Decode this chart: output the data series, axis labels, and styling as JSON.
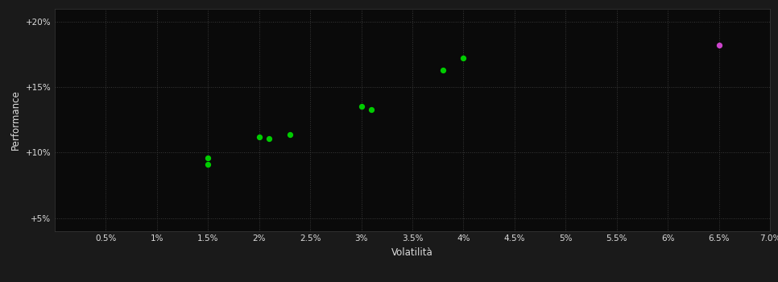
{
  "background_color": "#1a1a1a",
  "plot_bg_color": "#0a0a0a",
  "grid_color": "#3a3a3a",
  "text_color": "#dddddd",
  "xlabel": "Volatilità",
  "ylabel": "Performance",
  "xlim": [
    0.0,
    0.07
  ],
  "ylim": [
    0.04,
    0.21
  ],
  "xticks": [
    0.005,
    0.01,
    0.015,
    0.02,
    0.025,
    0.03,
    0.035,
    0.04,
    0.045,
    0.05,
    0.055,
    0.06,
    0.065,
    0.07
  ],
  "yticks": [
    0.05,
    0.1,
    0.15,
    0.2
  ],
  "ytick_labels": [
    "+5%",
    "+10%",
    "+15%",
    "+20%"
  ],
  "green_points": [
    [
      0.015,
      0.096
    ],
    [
      0.015,
      0.091
    ],
    [
      0.02,
      0.112
    ],
    [
      0.021,
      0.111
    ],
    [
      0.023,
      0.114
    ],
    [
      0.03,
      0.135
    ],
    [
      0.031,
      0.133
    ],
    [
      0.038,
      0.163
    ],
    [
      0.04,
      0.172
    ]
  ],
  "magenta_points": [
    [
      0.065,
      0.182
    ]
  ],
  "green_color": "#00cc00",
  "magenta_color": "#cc44cc",
  "point_size": 18
}
